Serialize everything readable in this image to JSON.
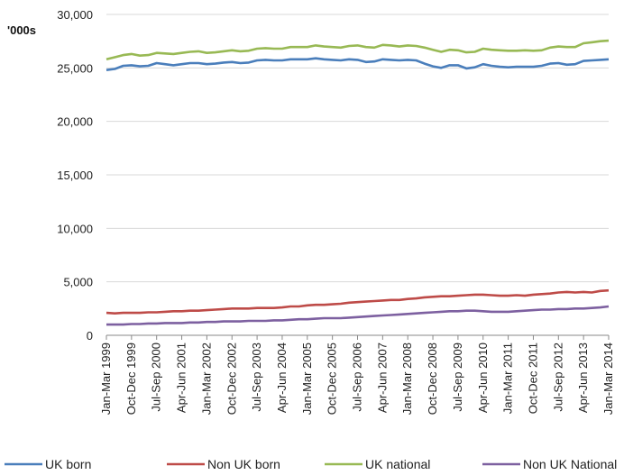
{
  "chart_data": {
    "type": "line",
    "unit_label": "'000s",
    "ylim": [
      0,
      30000
    ],
    "y_ticks": [
      0,
      5000,
      10000,
      15000,
      20000,
      25000,
      30000
    ],
    "y_tick_labels": [
      "0",
      "5,000",
      "10,000",
      "15,000",
      "20,000",
      "25,000",
      "30,000"
    ],
    "x_tick_labels": [
      "Jan-Mar 1999",
      "Oct-Dec 1999",
      "Jul-Sep 2000",
      "Apr-Jun 2001",
      "Jan-Mar 2002",
      "Oct-Dec 2002",
      "Jul-Sep 2003",
      "Apr-Jun 2004",
      "Jan-Mar 2005",
      "Oct-Dec 2005",
      "Jul-Sep 2006",
      "Apr-Jun 2007",
      "Jan-Mar 2008",
      "Oct-Dec 2008",
      "Jul-Sep 2009",
      "Apr-Jun 2010",
      "Jan-Mar 2011",
      "Oct-Dec 2011",
      "Jul-Sep 2012",
      "Apr-Jun 2013",
      "Jan-Mar 2014"
    ],
    "x_tick_step": 3,
    "grid": "horizontal",
    "legend_position": "bottom",
    "series": [
      {
        "name": "UK born",
        "color": "#4a7ebb",
        "values": [
          24800,
          24900,
          25200,
          25250,
          25150,
          25200,
          25450,
          25350,
          25250,
          25350,
          25450,
          25450,
          25350,
          25400,
          25500,
          25550,
          25450,
          25500,
          25700,
          25750,
          25700,
          25700,
          25800,
          25800,
          25800,
          25900,
          25800,
          25750,
          25700,
          25800,
          25750,
          25550,
          25600,
          25800,
          25750,
          25700,
          25750,
          25700,
          25400,
          25150,
          25000,
          25250,
          25250,
          24950,
          25050,
          25350,
          25200,
          25100,
          25050,
          25100,
          25100,
          25100,
          25200,
          25400,
          25450,
          25300,
          25350,
          25650,
          25700,
          25750,
          25800
        ]
      },
      {
        "name": "Non UK born",
        "color": "#be4b48",
        "values": [
          2100,
          2050,
          2100,
          2100,
          2100,
          2150,
          2150,
          2200,
          2250,
          2250,
          2300,
          2300,
          2350,
          2400,
          2450,
          2500,
          2500,
          2500,
          2550,
          2550,
          2550,
          2600,
          2700,
          2700,
          2800,
          2850,
          2850,
          2900,
          2950,
          3050,
          3100,
          3150,
          3200,
          3250,
          3300,
          3300,
          3400,
          3450,
          3550,
          3600,
          3650,
          3650,
          3700,
          3750,
          3800,
          3800,
          3750,
          3700,
          3700,
          3750,
          3700,
          3800,
          3850,
          3900,
          4000,
          4050,
          4000,
          4050,
          4000,
          4150,
          4200
        ]
      },
      {
        "name": "UK national",
        "color": "#98b954",
        "values": [
          25800,
          26000,
          26200,
          26300,
          26150,
          26200,
          26400,
          26350,
          26300,
          26400,
          26500,
          26550,
          26400,
          26450,
          26550,
          26650,
          26550,
          26600,
          26800,
          26850,
          26800,
          26800,
          26950,
          26950,
          26950,
          27100,
          27000,
          26950,
          26900,
          27050,
          27100,
          26950,
          26900,
          27150,
          27100,
          27000,
          27100,
          27050,
          26900,
          26700,
          26500,
          26700,
          26650,
          26450,
          26500,
          26800,
          26700,
          26650,
          26600,
          26600,
          26650,
          26600,
          26650,
          26900,
          27000,
          26950,
          26950,
          27300,
          27400,
          27500,
          27550
        ]
      },
      {
        "name": "Non UK National",
        "color": "#7d60a0",
        "values": [
          1000,
          1000,
          1000,
          1050,
          1050,
          1100,
          1100,
          1150,
          1150,
          1150,
          1200,
          1200,
          1250,
          1250,
          1300,
          1300,
          1300,
          1350,
          1350,
          1350,
          1400,
          1400,
          1450,
          1500,
          1500,
          1550,
          1600,
          1600,
          1600,
          1650,
          1700,
          1750,
          1800,
          1850,
          1900,
          1950,
          2000,
          2050,
          2100,
          2150,
          2200,
          2250,
          2250,
          2300,
          2300,
          2250,
          2200,
          2200,
          2200,
          2250,
          2300,
          2350,
          2400,
          2400,
          2450,
          2450,
          2500,
          2500,
          2550,
          2600,
          2700
        ]
      }
    ]
  }
}
